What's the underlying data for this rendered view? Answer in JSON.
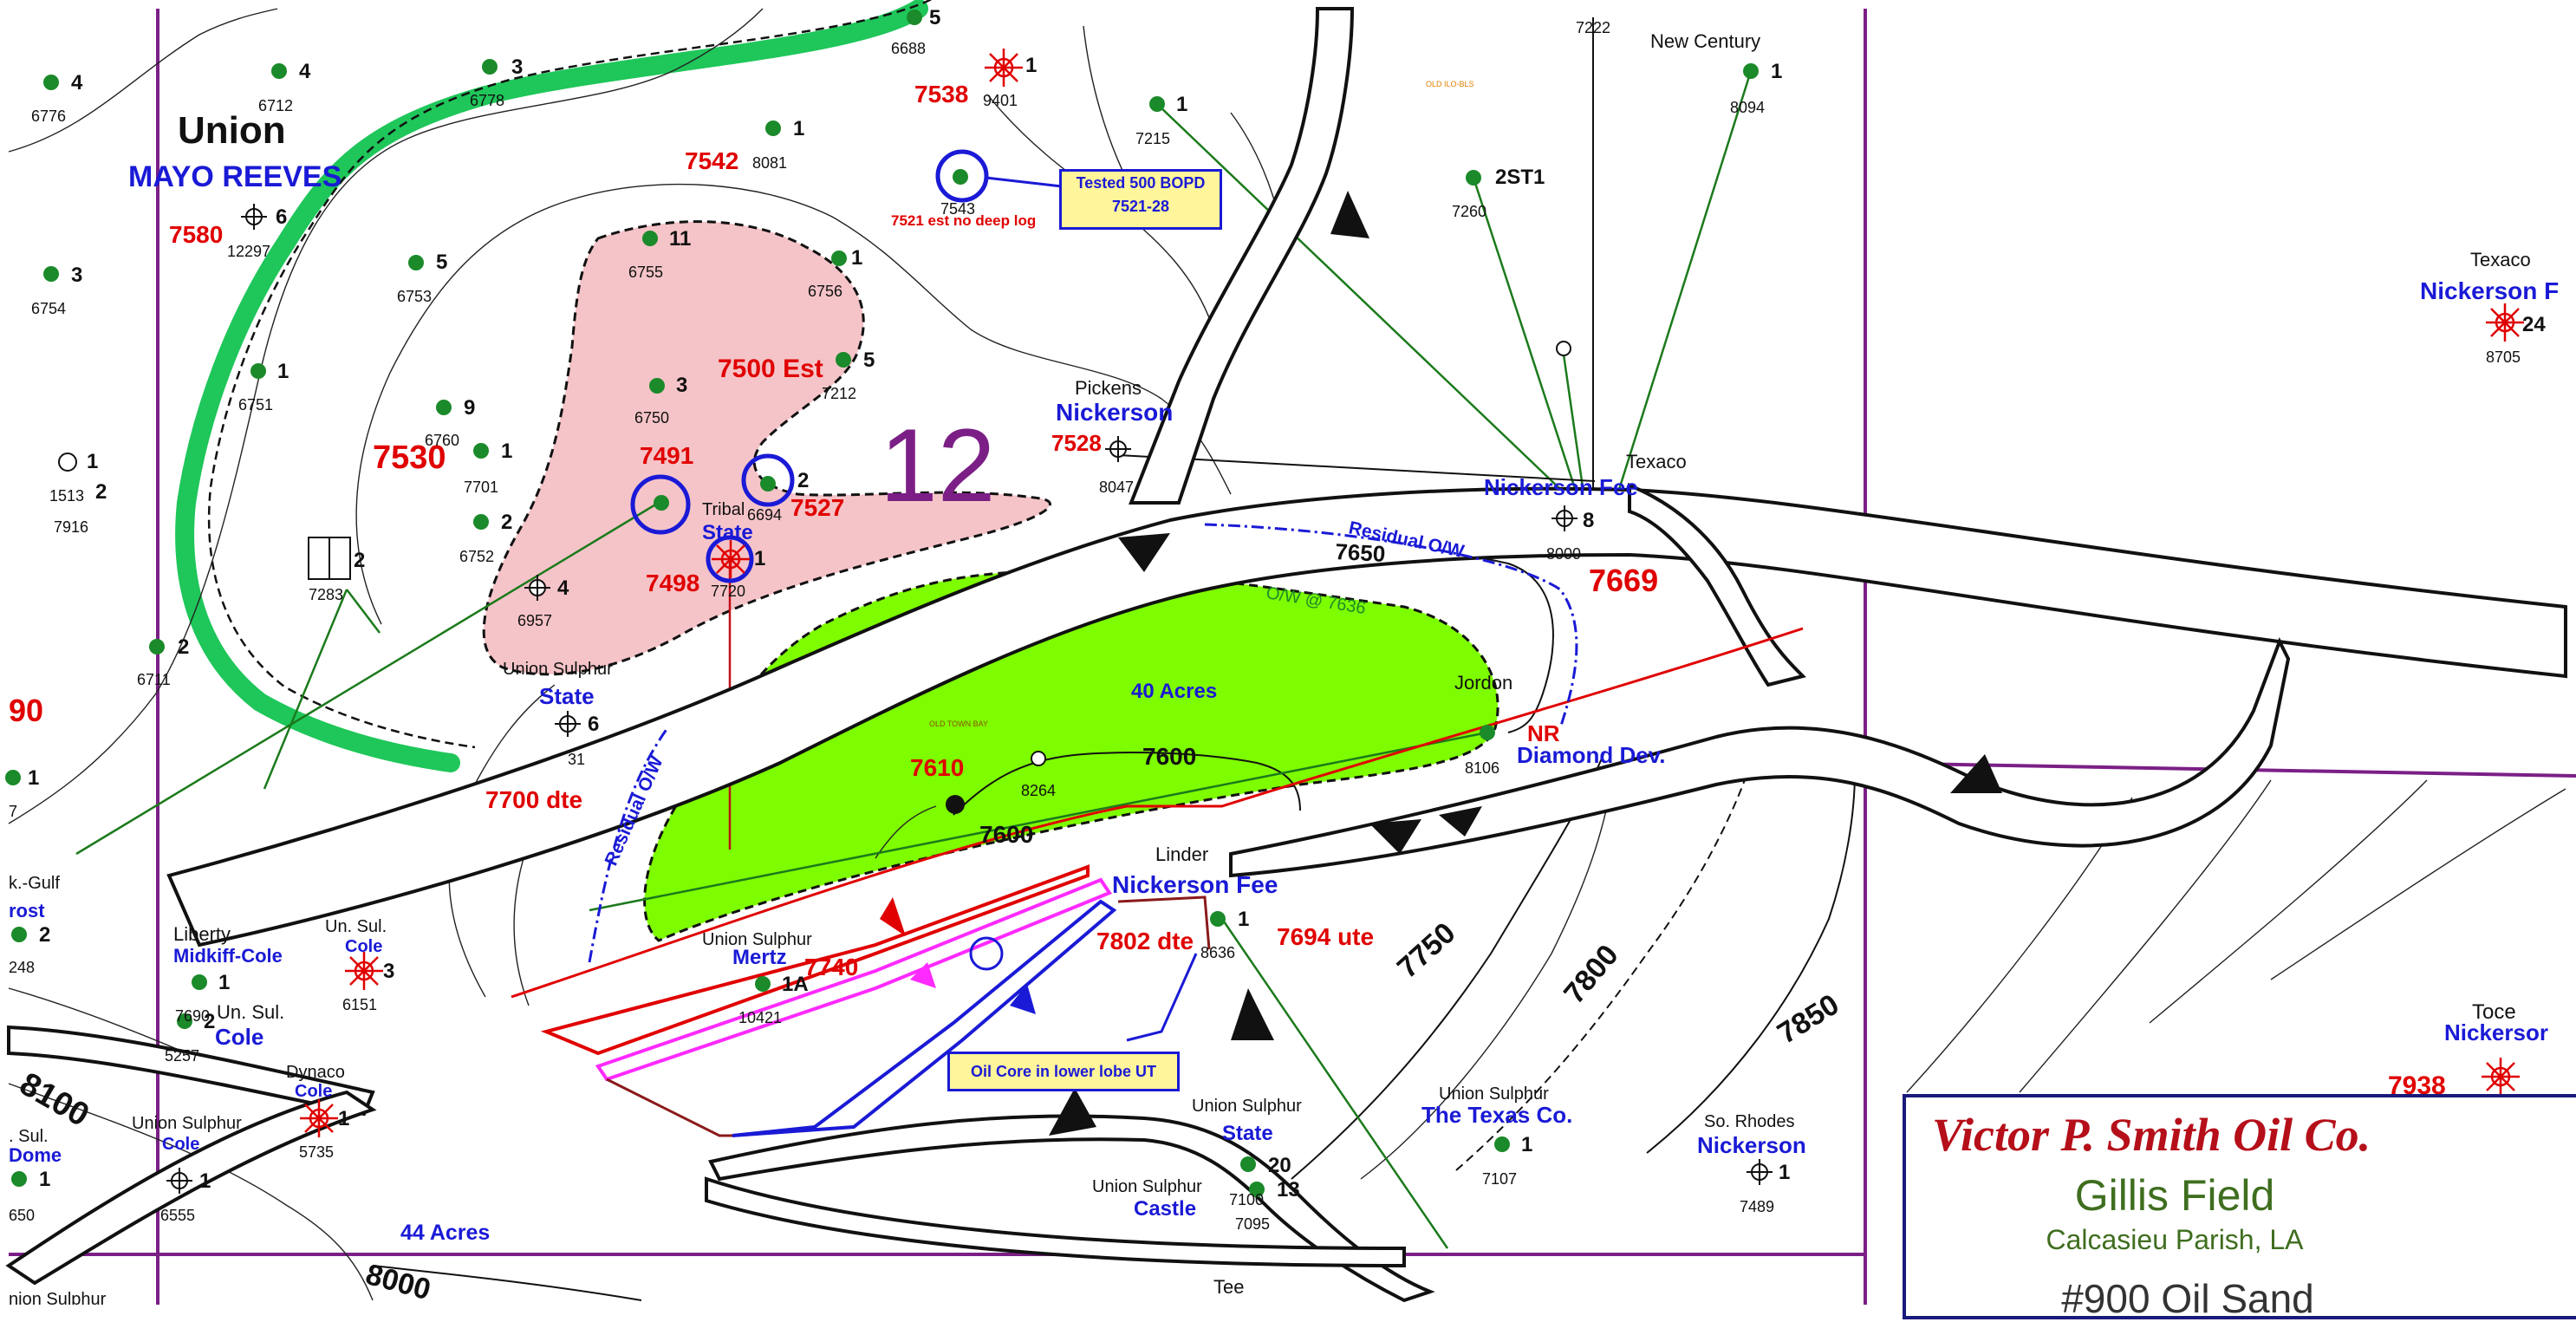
{
  "title_block": {
    "company": "Victor P. Smith Oil Co.",
    "field": "Gillis Field",
    "parish": "Calcasieu Parish, LA",
    "sand": "#900 Oil Sand"
  },
  "section_number": "12",
  "notes": {
    "tested": [
      "Tested 500 BOPD",
      "7521-28"
    ],
    "oil_core": "Oil Core in lower lobe UT",
    "no_deep_log": "7521 est no deep log"
  },
  "area_labels": {
    "acres_40": "40 Acres",
    "acres_44": "44 Acres",
    "ow_contact": "O/W @ 7636",
    "residual_ow_top": "Residual O/W",
    "residual_ow_left": "Residual O/W",
    "tiny_orange": "OLD ILO-BLS",
    "tiny_green": "OLD TOWN BAY"
  },
  "operator_labels": [
    {
      "key": "union",
      "text": "Union"
    },
    {
      "key": "mayo_reeves",
      "text": "MAYO REEVES"
    },
    {
      "key": "pickens",
      "text": "Pickens"
    },
    {
      "key": "nickerson_top",
      "text": "Nickerson"
    },
    {
      "key": "tribal",
      "text": "Tribal"
    },
    {
      "key": "state_tribal",
      "text": "State"
    },
    {
      "key": "union_sulphur_state",
      "text": "Union Sulphur"
    },
    {
      "key": "state_us",
      "text": "State"
    },
    {
      "key": "texaco_mid",
      "text": "Texaco"
    },
    {
      "key": "nickerson_fee_top",
      "text": "Nickerson Fee"
    },
    {
      "key": "jordon",
      "text": "Jordon"
    },
    {
      "key": "nr",
      "text": "NR"
    },
    {
      "key": "diamond_dev",
      "text": "Diamond Dev."
    },
    {
      "key": "linder",
      "text": "Linder"
    },
    {
      "key": "nickerson_fee_mid",
      "text": "Nickerson Fee"
    },
    {
      "key": "new_century",
      "text": "New Century"
    },
    {
      "key": "texaco_right",
      "text": "Texaco"
    },
    {
      "key": "nickerson_f_right",
      "text": "Nickerson F"
    },
    {
      "key": "kgulf",
      "text": "k.-Gulf"
    },
    {
      "key": "frost",
      "text": "rost"
    },
    {
      "key": "liberty",
      "text": "Liberty"
    },
    {
      "key": "midkiff_cole",
      "text": "Midkiff-Cole"
    },
    {
      "key": "un_sul_a",
      "text": "Un. Sul."
    },
    {
      "key": "cole_a",
      "text": "Cole"
    },
    {
      "key": "un_sul_b",
      "text": "Un. Sul."
    },
    {
      "key": "cole_b",
      "text": "Cole"
    },
    {
      "key": "dynaco",
      "text": "Dynaco"
    },
    {
      "key": "cole_c",
      "text": "Cole"
    },
    {
      "key": "union_sulphur_mertz",
      "text": "Union Sulphur"
    },
    {
      "key": "mertz",
      "text": "Mertz"
    },
    {
      "key": "sul_left",
      "text": ". Sul."
    },
    {
      "key": "dome",
      "text": "Dome"
    },
    {
      "key": "union_sulphur_cole",
      "text": "Union Sulphur"
    },
    {
      "key": "cole_d",
      "text": "Cole"
    },
    {
      "key": "union_sulphur_state2",
      "text": "Union Sulphur"
    },
    {
      "key": "state2",
      "text": "State"
    },
    {
      "key": "union_sulphur_castle",
      "text": "Union Sulphur"
    },
    {
      "key": "castle",
      "text": "Castle"
    },
    {
      "key": "union_sulphur_texas",
      "text": "Union Sulphur"
    },
    {
      "key": "texas_co",
      "text": "The Texas Co."
    },
    {
      "key": "so_rhodes",
      "text": "So. Rhodes"
    },
    {
      "key": "nickerson_bottom",
      "text": "Nickerson"
    },
    {
      "key": "toce",
      "text": "Toce"
    },
    {
      "key": "nickersor",
      "text": "Nickersor"
    },
    {
      "key": "tee",
      "text": "Tee"
    },
    {
      "key": "union_sulphur_cut",
      "text": "nion Sulphur"
    }
  ],
  "red_values": [
    {
      "key": "v7580",
      "text": "7580"
    },
    {
      "key": "v7530",
      "text": "7530"
    },
    {
      "key": "v7542",
      "text": "7542"
    },
    {
      "key": "v7538",
      "text": "7538"
    },
    {
      "key": "v7500est",
      "text": "7500 Est"
    },
    {
      "key": "v7491",
      "text": "7491"
    },
    {
      "key": "v7527",
      "text": "7527"
    },
    {
      "key": "v7498",
      "text": "7498"
    },
    {
      "key": "v7528",
      "text": "7528"
    },
    {
      "key": "v7669",
      "text": "7669"
    },
    {
      "key": "v7700dte",
      "text": "7700 dte"
    },
    {
      "key": "v7610",
      "text": "7610"
    },
    {
      "key": "v7740",
      "text": "7740"
    },
    {
      "key": "v7802dte",
      "text": "7802 dte"
    },
    {
      "key": "v7694ute",
      "text": "7694 ute"
    },
    {
      "key": "v90",
      "text": "90"
    },
    {
      "key": "v7938",
      "text": "7938"
    }
  ],
  "contour_labels": [
    {
      "key": "c7650",
      "text": "7650"
    },
    {
      "key": "c7600a",
      "text": "7600"
    },
    {
      "key": "c7600b",
      "text": "7600"
    },
    {
      "key": "c7750",
      "text": "7750"
    },
    {
      "key": "c7800",
      "text": "7800"
    },
    {
      "key": "c7850",
      "text": "7850"
    },
    {
      "key": "c8100",
      "text": "8100"
    },
    {
      "key": "c8000",
      "text": "8000"
    }
  ],
  "wells": [
    {
      "key": "w4_6776",
      "num": "4",
      "td": "6776"
    },
    {
      "key": "w4_6712",
      "num": "4",
      "td": "6712"
    },
    {
      "key": "w3_6778",
      "num": "3",
      "td": "6778"
    },
    {
      "key": "w5_6688",
      "num": "5",
      "td": "6688"
    },
    {
      "key": "w1_8081",
      "num": "1",
      "td": "8081"
    },
    {
      "key": "w1_9401",
      "num": "1",
      "td": "9401"
    },
    {
      "key": "w6_12297",
      "num": "6",
      "td": "12297"
    },
    {
      "key": "w3_6754",
      "num": "3",
      "td": "6754"
    },
    {
      "key": "w5_6753",
      "num": "5",
      "td": "6753"
    },
    {
      "key": "w11_6755",
      "num": "11",
      "td": "6755"
    },
    {
      "key": "w1_6756",
      "num": "1",
      "td": "6756"
    },
    {
      "key": "w5_7212",
      "num": "5",
      "td": "7212"
    },
    {
      "key": "w1_6751",
      "num": "1",
      "td": "6751"
    },
    {
      "key": "w3_6750",
      "num": "3",
      "td": "6750"
    },
    {
      "key": "w9_6760",
      "num": "9",
      "td": "6760"
    },
    {
      "key": "w1_7701",
      "num": "1",
      "td": "7701"
    },
    {
      "key": "w1_1513",
      "num": "1",
      "td": "1513"
    },
    {
      "key": "w2_7916",
      "num": "2",
      "td": "7916"
    },
    {
      "key": "w2_6752",
      "num": "2",
      "td": "6752"
    },
    {
      "key": "w4_6957",
      "num": "4",
      "td": "6957"
    },
    {
      "key": "w2_7283",
      "num": "2",
      "td": "7283"
    },
    {
      "key": "w2_6694",
      "num": "2",
      "td": "6694"
    },
    {
      "key": "w1_7720",
      "num": "1",
      "td": "7720"
    },
    {
      "key": "w2_6711",
      "num": "2",
      "td": "6711"
    },
    {
      "key": "w6_7731",
      "num": "6",
      "td": "31"
    },
    {
      "key": "w1_7543",
      "num": "",
      "td": "7543"
    },
    {
      "key": "w1_7215",
      "num": "1",
      "td": "7215"
    },
    {
      "key": "w2st1_7260",
      "num": "2ST1",
      "td": "7260"
    },
    {
      "key": "w1_8094",
      "num": "1",
      "td": "8094"
    },
    {
      "key": "w_7222",
      "num": "",
      "td": "7222"
    },
    {
      "key": "w_8047",
      "num": "",
      "td": "8047"
    },
    {
      "key": "w8_8000",
      "num": "8",
      "td": "8000"
    },
    {
      "key": "w24_8705",
      "num": "24",
      "td": "8705"
    },
    {
      "key": "w_8106",
      "num": "",
      "td": "8106"
    },
    {
      "key": "w_8264",
      "num": "",
      "td": "8264"
    },
    {
      "key": "w1_left",
      "num": "1",
      "td": "7"
    },
    {
      "key": "w2_248",
      "num": "2",
      "td": "248"
    },
    {
      "key": "w1_7690",
      "num": "1",
      "td": "7690"
    },
    {
      "key": "w2_5257",
      "num": "2",
      "td": "5257"
    },
    {
      "key": "w3_6151",
      "num": "3",
      "td": "6151"
    },
    {
      "key": "w1_5735",
      "num": "1",
      "td": "5735"
    },
    {
      "key": "w1a_10421",
      "num": "1A",
      "td": "10421"
    },
    {
      "key": "w1_8636",
      "num": "1",
      "td": "8636"
    },
    {
      "key": "w1_650",
      "num": "1",
      "td": "650"
    },
    {
      "key": "w1_6555",
      "num": "1",
      "td": "6555"
    },
    {
      "key": "w20_7100",
      "num": "20",
      "td": "7100"
    },
    {
      "key": "w13_7095",
      "num": "13",
      "td": "7095"
    },
    {
      "key": "w1_7107",
      "num": "1",
      "td": "7107"
    },
    {
      "key": "w1_7489",
      "num": "1",
      "td": "7489"
    }
  ],
  "colors": {
    "pay_zone_pink": "#f5c4c8",
    "oil_zone_green": "#7efc00",
    "thick_contour_green": "#1fc65a",
    "section_line_purple": "#7b1f86",
    "title_red": "#b50f1a",
    "title_green": "#3f6e1f",
    "label_blue": "#1a1ad6",
    "label_red": "#e00000"
  }
}
